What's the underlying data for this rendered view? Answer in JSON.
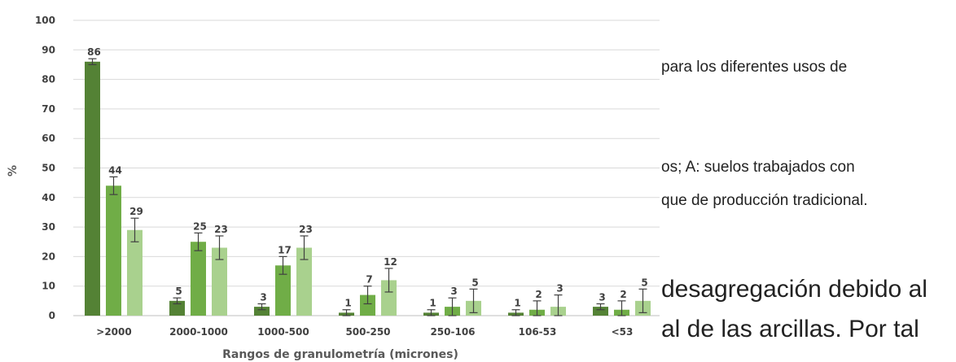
{
  "document_text": {
    "line1": "para los diferentes usos de",
    "line2": "os;  A:  suelos  trabajados  con",
    "line3": "que de producción tradicional.",
    "line4": "desagregación debido al",
    "line5": "al de las arcillas. Por tal"
  },
  "chart_data": {
    "type": "bar",
    "ylabel": "%",
    "xlabel": "Rangos de granulometría (micrones)",
    "ylim": [
      0,
      100
    ],
    "yticks": [
      0,
      10,
      20,
      30,
      40,
      50,
      60,
      70,
      80,
      90,
      100
    ],
    "categories": [
      ">2000",
      "2000-1000",
      "1000-500",
      "500-250",
      "250-106",
      "106-53",
      "<53"
    ],
    "grid": true,
    "error_bars": true,
    "series": [
      {
        "color": "#548235",
        "values": [
          86,
          5,
          3,
          1,
          1,
          1,
          3
        ],
        "errors": [
          1,
          1,
          1,
          1,
          1,
          1,
          1
        ]
      },
      {
        "color": "#70ad47",
        "values": [
          44,
          25,
          17,
          7,
          3,
          2,
          2
        ],
        "errors": [
          3,
          3,
          3,
          3,
          3,
          3,
          3
        ]
      },
      {
        "color": "#a9d18e",
        "values": [
          29,
          23,
          23,
          12,
          5,
          3,
          5
        ],
        "errors": [
          4,
          4,
          4,
          4,
          4,
          4,
          4
        ]
      }
    ]
  }
}
